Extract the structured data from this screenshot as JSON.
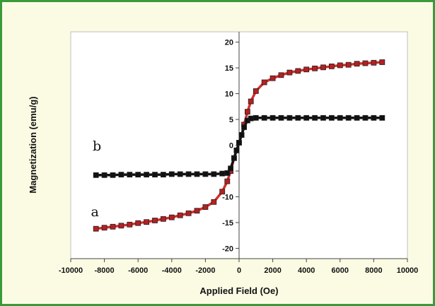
{
  "chart_data": {
    "type": "scatter",
    "title": "",
    "xlabel": "Applied Field (Oe)",
    "ylabel": "Magnetization (emu/g)",
    "xlim": [
      -10000,
      10000
    ],
    "ylim": [
      -22,
      22
    ],
    "xticks": [
      -10000,
      -8000,
      -6000,
      -4000,
      -2000,
      0,
      2000,
      4000,
      6000,
      8000,
      10000
    ],
    "yticks": [
      -20,
      -15,
      -10,
      -5,
      0,
      5,
      10,
      15,
      20
    ],
    "grid": false,
    "legend": "none",
    "series": [
      {
        "name": "a",
        "color": "#d32f2f",
        "marker_color": "#b72020",
        "x": [
          -8500,
          -8000,
          -7500,
          -7000,
          -6500,
          -6000,
          -5500,
          -5000,
          -4500,
          -4000,
          -3500,
          -3000,
          -2500,
          -2000,
          -1500,
          -1000,
          -700,
          -500,
          -300,
          -150,
          0,
          150,
          300,
          500,
          700,
          1000,
          1500,
          2000,
          2500,
          3000,
          3500,
          4000,
          4500,
          5000,
          5500,
          6000,
          6500,
          7000,
          7500,
          8000,
          8500
        ],
        "y": [
          -16.2,
          -16.0,
          -15.8,
          -15.6,
          -15.4,
          -15.1,
          -14.9,
          -14.6,
          -14.3,
          -14.0,
          -13.6,
          -13.2,
          -12.7,
          -12.0,
          -11.0,
          -9.0,
          -7.0,
          -5.0,
          -2.5,
          -1.0,
          0.5,
          2.0,
          4.0,
          6.5,
          8.5,
          10.5,
          12.2,
          13.0,
          13.6,
          14.1,
          14.4,
          14.7,
          14.9,
          15.1,
          15.3,
          15.5,
          15.6,
          15.8,
          15.9,
          16.0,
          16.1
        ]
      },
      {
        "name": "b",
        "color": "#111111",
        "marker_color": "#111111",
        "x": [
          -8500,
          -8000,
          -7500,
          -7000,
          -6500,
          -6000,
          -5500,
          -5000,
          -4500,
          -4000,
          -3500,
          -3000,
          -2500,
          -2000,
          -1500,
          -1000,
          -700,
          -500,
          -300,
          -150,
          0,
          150,
          300,
          500,
          700,
          1000,
          1500,
          2000,
          2500,
          3000,
          3500,
          4000,
          4500,
          5000,
          5500,
          6000,
          6500,
          7000,
          7500,
          8000,
          8500
        ],
        "y": [
          -5.8,
          -5.8,
          -5.8,
          -5.7,
          -5.7,
          -5.7,
          -5.7,
          -5.7,
          -5.7,
          -5.6,
          -5.6,
          -5.6,
          -5.6,
          -5.6,
          -5.6,
          -5.5,
          -5.4,
          -4.5,
          -2.5,
          -1.0,
          0.5,
          2.0,
          3.5,
          4.8,
          5.2,
          5.3,
          5.3,
          5.3,
          5.3,
          5.3,
          5.3,
          5.3,
          5.3,
          5.3,
          5.3,
          5.3,
          5.3,
          5.3,
          5.3,
          5.3,
          5.3
        ]
      }
    ],
    "annotations": [
      {
        "text": "a",
        "x": -8800,
        "y": -13.8
      },
      {
        "text": "b",
        "x": -8700,
        "y": -1.0
      }
    ]
  }
}
